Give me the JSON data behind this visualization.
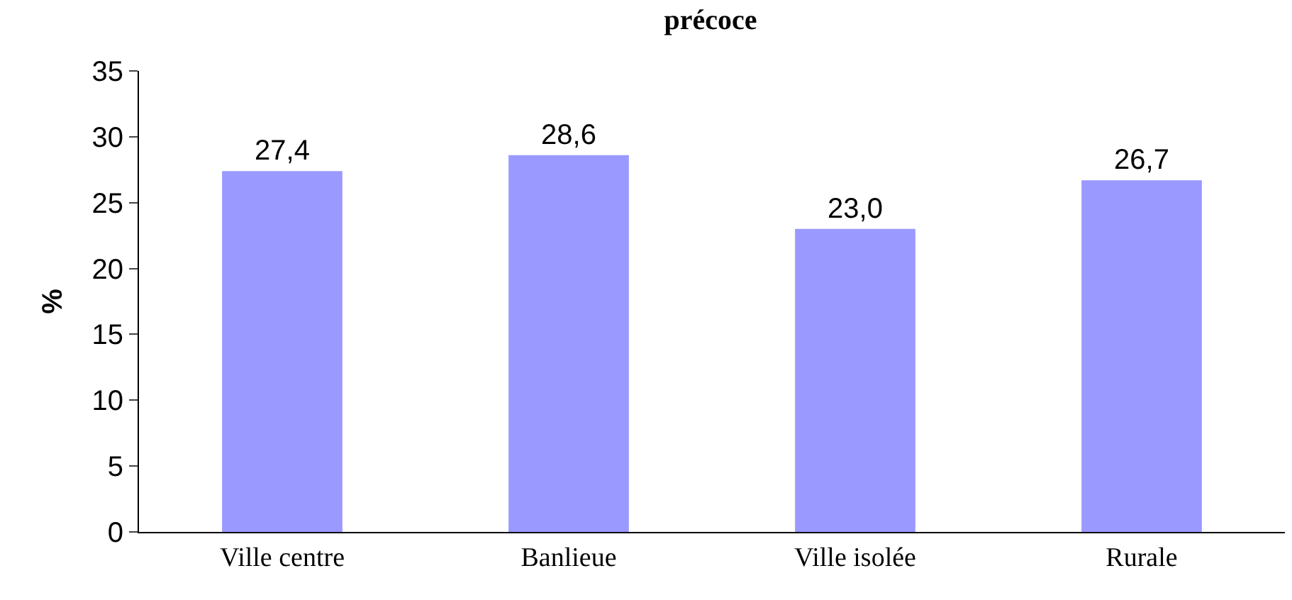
{
  "chart_data": {
    "type": "bar",
    "title": "précoce",
    "ylabel": "%",
    "categories": [
      "Ville centre",
      "Banlieue",
      "Ville isolée",
      "Rurale"
    ],
    "values": [
      27.4,
      28.6,
      23.0,
      26.7
    ],
    "value_labels": [
      "27,4",
      "28,6",
      "23,0",
      "26,7"
    ],
    "color": "#9999ff",
    "ylim": [
      0,
      35
    ],
    "yticks": [
      0,
      5,
      10,
      15,
      20,
      25,
      30,
      35
    ]
  }
}
